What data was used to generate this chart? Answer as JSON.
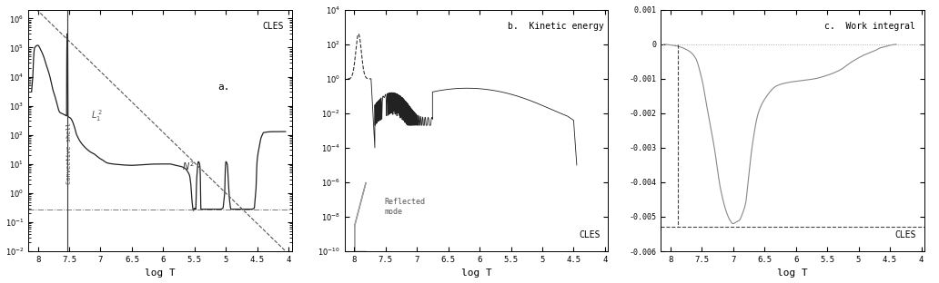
{
  "fig_width": 10.32,
  "fig_height": 3.12,
  "dpi": 100,
  "panel_a": {
    "xlim": [
      8.15,
      3.95
    ],
    "ylim": [
      0.01,
      2000000
    ],
    "convective_shell_x": 7.53,
    "horizontal_line_y": 0.28,
    "xticks": [
      8,
      7.5,
      7,
      6.5,
      6,
      5.5,
      5,
      4.5,
      4
    ],
    "xticklabels": [
      "8",
      "7.5",
      "7",
      "6.5",
      "6",
      "5.5",
      "5",
      "4.5",
      "4"
    ]
  },
  "panel_b": {
    "xlim": [
      8.15,
      3.95
    ],
    "ylim": [
      1e-10,
      10000
    ],
    "xticks": [
      8,
      7.5,
      7,
      6.5,
      6,
      5.5,
      5,
      4.5,
      4
    ],
    "xticklabels": [
      "8",
      "7.5",
      "7",
      "6.5",
      "6",
      "5.5",
      "5",
      "4.5",
      "4"
    ]
  },
  "panel_c": {
    "xlim": [
      8.15,
      3.95
    ],
    "ylim": [
      -0.006,
      0.001
    ],
    "dashed_y": -0.0053,
    "xticks": [
      8,
      7.5,
      7,
      6.5,
      6,
      5.5,
      5,
      4.5,
      4
    ],
    "xticklabels": [
      "8",
      "7.5",
      "7",
      "6.5",
      "6",
      "5.5",
      "5",
      "4.5",
      "4"
    ],
    "yticks": [
      -0.006,
      -0.005,
      -0.004,
      -0.003,
      -0.002,
      -0.001,
      0,
      0.001
    ],
    "yticklabels": [
      "-0.006",
      "-0.005",
      "-0.004",
      "-0.003",
      "-0.002",
      "-0.001",
      "0",
      "0.001"
    ]
  }
}
